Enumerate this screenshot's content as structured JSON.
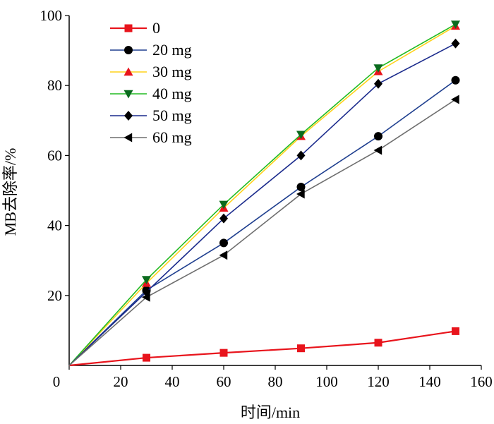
{
  "chart_data": {
    "type": "line",
    "xlabel": "时间/min",
    "ylabel": "MB去除率/%",
    "xlim": [
      0,
      160
    ],
    "ylim": [
      0,
      100
    ],
    "xticks": [
      0,
      20,
      40,
      60,
      80,
      100,
      120,
      140,
      160
    ],
    "yticks": [
      20,
      40,
      60,
      80,
      100
    ],
    "legend_position": "top-left",
    "series": [
      {
        "name": "0",
        "color": "#e8141c",
        "marker": "square",
        "x": [
          0,
          30,
          60,
          90,
          120,
          150
        ],
        "y": [
          0,
          2.2,
          3.6,
          4.9,
          6.5,
          9.8
        ]
      },
      {
        "name": "20 mg",
        "color": "#1f3f8f",
        "marker": "circle",
        "x": [
          0,
          30,
          60,
          90,
          120,
          150
        ],
        "y": [
          0,
          21.5,
          35,
          51,
          65.5,
          81.5
        ]
      },
      {
        "name": "30 mg",
        "color": "#ffd21a",
        "marker": "triangle-up",
        "x": [
          0,
          30,
          60,
          90,
          120,
          150
        ],
        "y": [
          0,
          23.5,
          45,
          65.5,
          84,
          97
        ]
      },
      {
        "name": "40 mg",
        "color": "#22bb22",
        "marker": "triangle-down",
        "x": [
          0,
          30,
          60,
          90,
          120,
          150
        ],
        "y": [
          0,
          24.5,
          46,
          66,
          85,
          97.5
        ]
      },
      {
        "name": "50 mg",
        "color": "#1a2a8c",
        "marker": "diamond",
        "x": [
          0,
          30,
          60,
          90,
          120,
          150
        ],
        "y": [
          0,
          21,
          42,
          60,
          80.5,
          92
        ]
      },
      {
        "name": "60 mg",
        "color": "#6e6e6e",
        "marker": "triangle-left",
        "x": [
          0,
          30,
          60,
          90,
          120,
          150
        ],
        "y": [
          0,
          19.5,
          31.5,
          49,
          61.5,
          76
        ]
      }
    ]
  }
}
